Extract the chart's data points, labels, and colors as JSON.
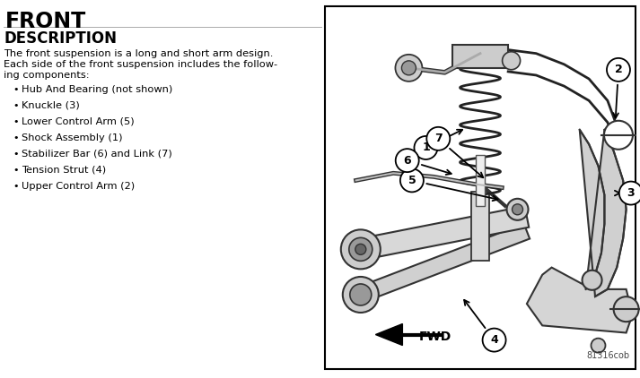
{
  "title": "FRONT",
  "section_header": "DESCRIPTION",
  "description_line1": "The front suspension is a long and short arm design.",
  "description_line2": "Each side of the front suspension includes the follow-",
  "description_line3": "ing components:",
  "bullet_items": [
    "Hub And Bearing (not shown)",
    "Knuckle (3)",
    "Lower Control Arm (5)",
    "Shock Assembly (1)",
    "Stabilizer Bar (6) and Link (7)",
    "Tension Strut (4)",
    "Upper Control Arm (2)"
  ],
  "bg_color": "#ffffff",
  "text_color": "#000000",
  "diagram_ref": "81316cob",
  "fwd_label": "FWD"
}
